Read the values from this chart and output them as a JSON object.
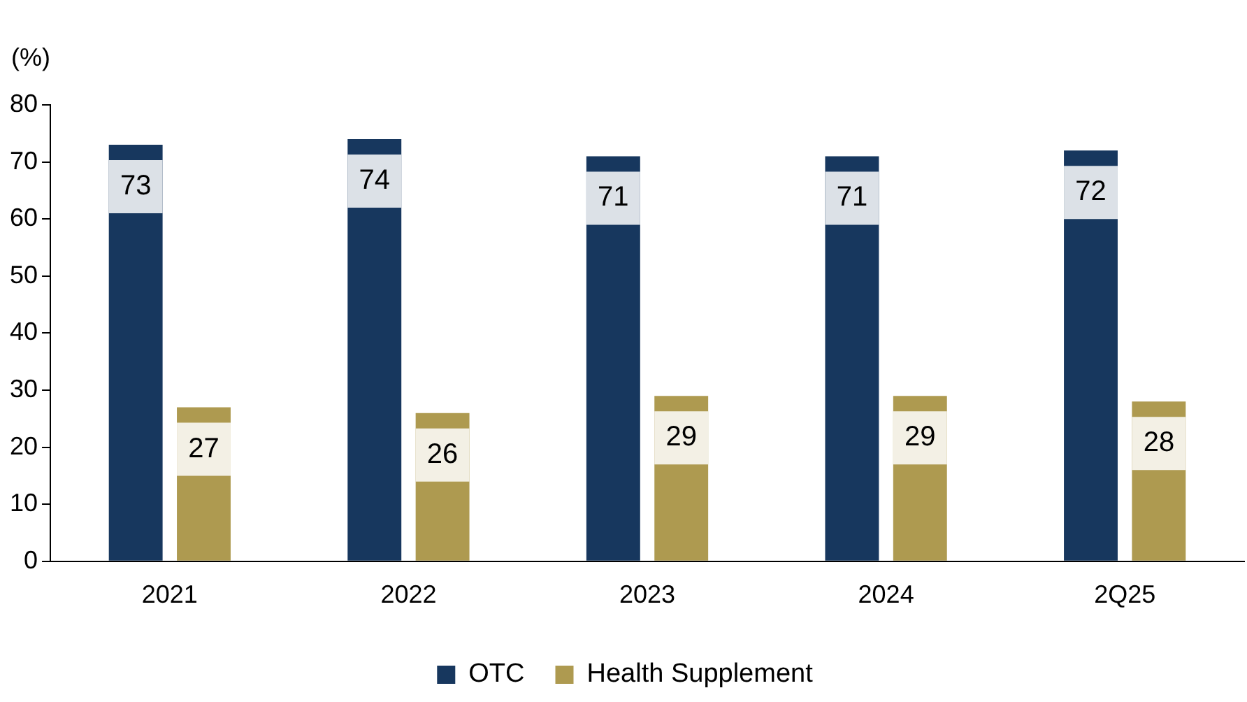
{
  "chart_data": {
    "type": "bar",
    "ylabel": "(%)",
    "categories": [
      "2021",
      "2022",
      "2023",
      "2024",
      "2Q25"
    ],
    "series": [
      {
        "name": "OTC",
        "color": "#17375e",
        "values": [
          73,
          74,
          71,
          71,
          72
        ]
      },
      {
        "name": "Health Supplement",
        "color": "#ae9a50",
        "values": [
          27,
          26,
          29,
          29,
          28
        ]
      }
    ],
    "ylim": [
      0,
      80
    ],
    "yticks": [
      0,
      10,
      20,
      30,
      40,
      50,
      60,
      70,
      80
    ],
    "grid": false,
    "legend": "bottom",
    "data_labels": true
  }
}
